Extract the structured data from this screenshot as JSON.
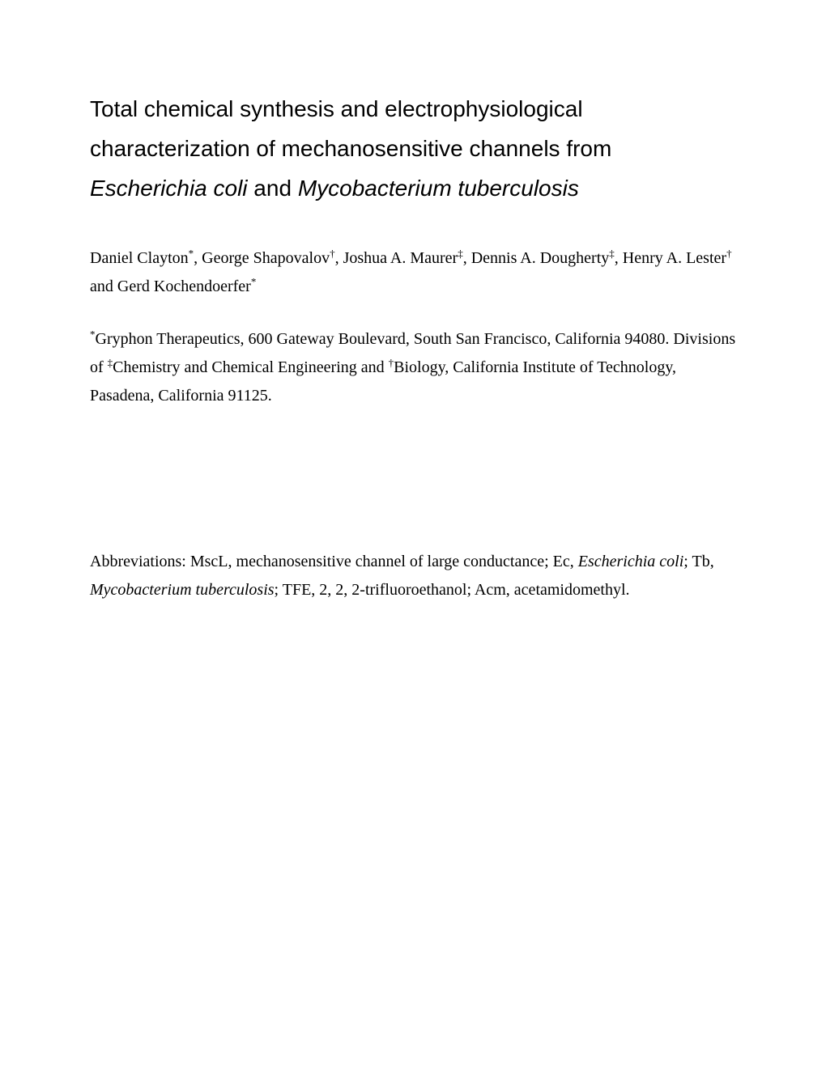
{
  "title": {
    "line1": "Total chemical synthesis and electrophysiological",
    "line2": "characterization of mechanosensitive channels from",
    "species1": "Escherichia coli",
    "connector": " and ",
    "species2": "Mycobacterium tuberculosis"
  },
  "authors": {
    "a1_name": "Daniel Clayton",
    "a1_sup": "*",
    "sep1": ", ",
    "a2_name": "George Shapovalov",
    "a2_sup": "†",
    "sep2": ", ",
    "a3_name": "Joshua A. Maurer",
    "a3_sup": "‡",
    "sep3": ", ",
    "a4_name": "Dennis A. Dougherty",
    "a4_sup": "‡",
    "sep4": ", ",
    "a5_name": "Henry A. Lester",
    "a5_sup": "†",
    "sep5": " and ",
    "a6_name": "Gerd Kochendoerfer",
    "a6_sup": "*"
  },
  "affiliations": {
    "sup1": "*",
    "text1": "Gryphon Therapeutics, 600 Gateway Boulevard, South San Francisco, California 94080. Divisions of ",
    "sup2": "‡",
    "text2": "Chemistry and Chemical Engineering and ",
    "sup3": "†",
    "text3": "Biology, California Institute of Technology, Pasadena, California 91125."
  },
  "abbreviations": {
    "prefix": "Abbreviations: MscL, mechanosensitive channel of large conductance; Ec, ",
    "italic1": "Escherichia coli",
    "mid1": "; Tb, ",
    "italic2": "Mycobacterium tuberculosis",
    "suffix": "; TFE, 2, 2, 2-trifluoroethanol; Acm, acetamidomethyl."
  }
}
